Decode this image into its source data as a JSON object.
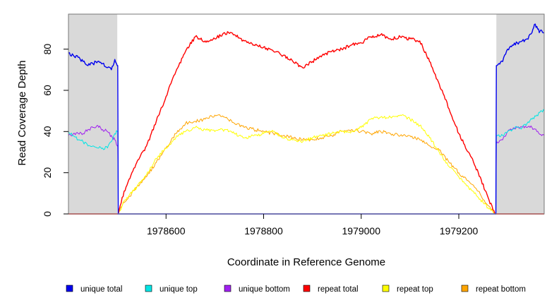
{
  "chart_data": {
    "type": "line",
    "title": "",
    "xlabel": "Coordinate in Reference Genome",
    "ylabel": "Read Coverage Depth",
    "xlim": [
      1978400,
      1979375
    ],
    "ylim": [
      0,
      97
    ],
    "x_ticks": [
      1978600,
      1978800,
      1979000,
      1979200
    ],
    "x_tick_labels": [
      "1978600",
      "1978800",
      "1979000",
      "1979200"
    ],
    "y_ticks": [
      0,
      20,
      40,
      60,
      80
    ],
    "y_tick_labels": [
      "0",
      "20",
      "40",
      "60",
      "80"
    ],
    "shaded_regions": [
      {
        "name": "left-unique-region",
        "x": [
          1978400,
          1978500
        ],
        "color": "#d9d9d9"
      },
      {
        "name": "right-unique-region",
        "x": [
          1979277,
          1979375
        ],
        "color": "#d9d9d9"
      }
    ],
    "repeat_region": [
      1978500,
      1979277
    ],
    "series": [
      {
        "name": "unique total",
        "color": "#0000ee",
        "width": 1.4,
        "x": [
          1978400,
          1978410,
          1978420,
          1978430,
          1978440,
          1978450,
          1978460,
          1978470,
          1978480,
          1978488,
          1978495,
          1978500,
          1978501,
          1978502,
          1979276,
          1979277,
          1979278,
          1979290,
          1979300,
          1979310,
          1979320,
          1979330,
          1979340,
          1979350,
          1979355,
          1979360,
          1979365,
          1979370,
          1979375
        ],
        "values": [
          78,
          77,
          76,
          74,
          72,
          73,
          74,
          73,
          71,
          70,
          75,
          72,
          72,
          0,
          0,
          72,
          72,
          74,
          80,
          82,
          83,
          84,
          85,
          88,
          92,
          91,
          88,
          89,
          88
        ]
      },
      {
        "name": "unique top",
        "color": "#00e5e5",
        "width": 1.0,
        "x": [
          1978400,
          1978410,
          1978420,
          1978430,
          1978440,
          1978450,
          1978460,
          1978470,
          1978480,
          1978490,
          1978495,
          1978500,
          1978501,
          1978502,
          1979276,
          1979277,
          1979278,
          1979290,
          1979300,
          1979310,
          1979320,
          1979330,
          1979340,
          1979350,
          1979360,
          1979370,
          1979375
        ],
        "values": [
          40,
          38,
          36,
          35,
          33,
          33,
          32,
          32,
          32,
          36,
          39,
          40,
          40,
          0,
          0,
          38,
          38,
          38,
          40,
          41,
          42,
          42,
          44,
          46,
          48,
          50,
          50
        ]
      },
      {
        "name": "unique bottom",
        "color": "#a020f0",
        "width": 1.0,
        "x": [
          1978400,
          1978410,
          1978420,
          1978430,
          1978440,
          1978450,
          1978460,
          1978470,
          1978480,
          1978490,
          1978495,
          1978500,
          1978501,
          1978502,
          1979276,
          1979277,
          1979278,
          1979290,
          1979300,
          1979310,
          1979320,
          1979330,
          1979340,
          1979350,
          1979360,
          1979370,
          1979375
        ],
        "values": [
          38,
          39,
          39,
          39,
          41,
          42,
          43,
          41,
          40,
          37,
          36,
          33,
          33,
          0,
          0,
          34,
          35,
          36,
          40,
          41,
          42,
          42,
          42,
          42,
          40,
          38,
          38
        ]
      },
      {
        "name": "repeat total",
        "color": "#ff0000",
        "width": 1.4,
        "x": [
          1978400,
          1978500,
          1978502,
          1978510,
          1978520,
          1978540,
          1978560,
          1978580,
          1978600,
          1978620,
          1978640,
          1978660,
          1978680,
          1978700,
          1978720,
          1978740,
          1978760,
          1978780,
          1978800,
          1978820,
          1978840,
          1978860,
          1978880,
          1978900,
          1978920,
          1978940,
          1978960,
          1978980,
          1979000,
          1979020,
          1979040,
          1979060,
          1979080,
          1979100,
          1979120,
          1979140,
          1979160,
          1979180,
          1979200,
          1979220,
          1979240,
          1979260,
          1979270,
          1979276,
          1979278,
          1979375
        ],
        "values": [
          0,
          0,
          0,
          8,
          14,
          25,
          33,
          45,
          57,
          69,
          79,
          86,
          84,
          85,
          88,
          87,
          84,
          82,
          81,
          79,
          77,
          74,
          71,
          74,
          77,
          79,
          80,
          82,
          83,
          86,
          87,
          85,
          86,
          85,
          84,
          74,
          63,
          51,
          39,
          30,
          20,
          8,
          2,
          0,
          0,
          0
        ]
      },
      {
        "name": "repeat top",
        "color": "#ffff00",
        "width": 1.0,
        "x": [
          1978400,
          1978500,
          1978502,
          1978510,
          1978520,
          1978540,
          1978560,
          1978580,
          1978600,
          1978620,
          1978640,
          1978660,
          1978680,
          1978700,
          1978720,
          1978740,
          1978760,
          1978780,
          1978800,
          1978820,
          1978840,
          1978860,
          1978880,
          1978900,
          1978920,
          1978940,
          1978960,
          1978980,
          1979000,
          1979020,
          1979040,
          1979060,
          1979080,
          1979100,
          1979120,
          1979140,
          1979160,
          1979180,
          1979200,
          1979220,
          1979240,
          1979260,
          1979270,
          1979276,
          1979278,
          1979375
        ],
        "values": [
          0,
          0,
          0,
          4,
          8,
          13,
          19,
          27,
          32,
          37,
          40,
          42,
          41,
          40,
          41,
          39,
          37,
          38,
          39,
          40,
          37,
          36,
          35,
          37,
          38,
          39,
          40,
          40,
          42,
          46,
          47,
          47,
          48,
          46,
          43,
          37,
          30,
          23,
          18,
          13,
          8,
          3,
          1,
          0,
          0,
          0
        ]
      },
      {
        "name": "repeat bottom",
        "color": "#ffa500",
        "width": 1.0,
        "x": [
          1978400,
          1978500,
          1978502,
          1978510,
          1978520,
          1978540,
          1978560,
          1978580,
          1978600,
          1978620,
          1978640,
          1978660,
          1978680,
          1978700,
          1978720,
          1978740,
          1978760,
          1978780,
          1978800,
          1978820,
          1978840,
          1978860,
          1978880,
          1978900,
          1978920,
          1978940,
          1978960,
          1978980,
          1979000,
          1979020,
          1979040,
          1979060,
          1979080,
          1979100,
          1979120,
          1979140,
          1979160,
          1979180,
          1979200,
          1979220,
          1979240,
          1979260,
          1979270,
          1979276,
          1979278,
          1979375
        ],
        "values": [
          0,
          0,
          0,
          4,
          7,
          13,
          18,
          25,
          32,
          39,
          44,
          45,
          46,
          48,
          47,
          44,
          42,
          41,
          40,
          39,
          38,
          37,
          36,
          36,
          37,
          38,
          40,
          41,
          40,
          39,
          40,
          39,
          38,
          38,
          36,
          33,
          31,
          25,
          20,
          16,
          11,
          4,
          1,
          0,
          0,
          0
        ]
      }
    ],
    "baseline_line": {
      "name": "zero-line",
      "color": "#6b6bf0"
    }
  },
  "legend": {
    "items": [
      {
        "label": "unique total",
        "color": "#0000ee"
      },
      {
        "label": "unique top",
        "color": "#00e5e5"
      },
      {
        "label": "unique bottom",
        "color": "#a020f0"
      },
      {
        "label": "repeat total",
        "color": "#ff0000"
      },
      {
        "label": "repeat top",
        "color": "#ffff00"
      },
      {
        "label": "repeat bottom",
        "color": "#ffa500"
      }
    ]
  }
}
